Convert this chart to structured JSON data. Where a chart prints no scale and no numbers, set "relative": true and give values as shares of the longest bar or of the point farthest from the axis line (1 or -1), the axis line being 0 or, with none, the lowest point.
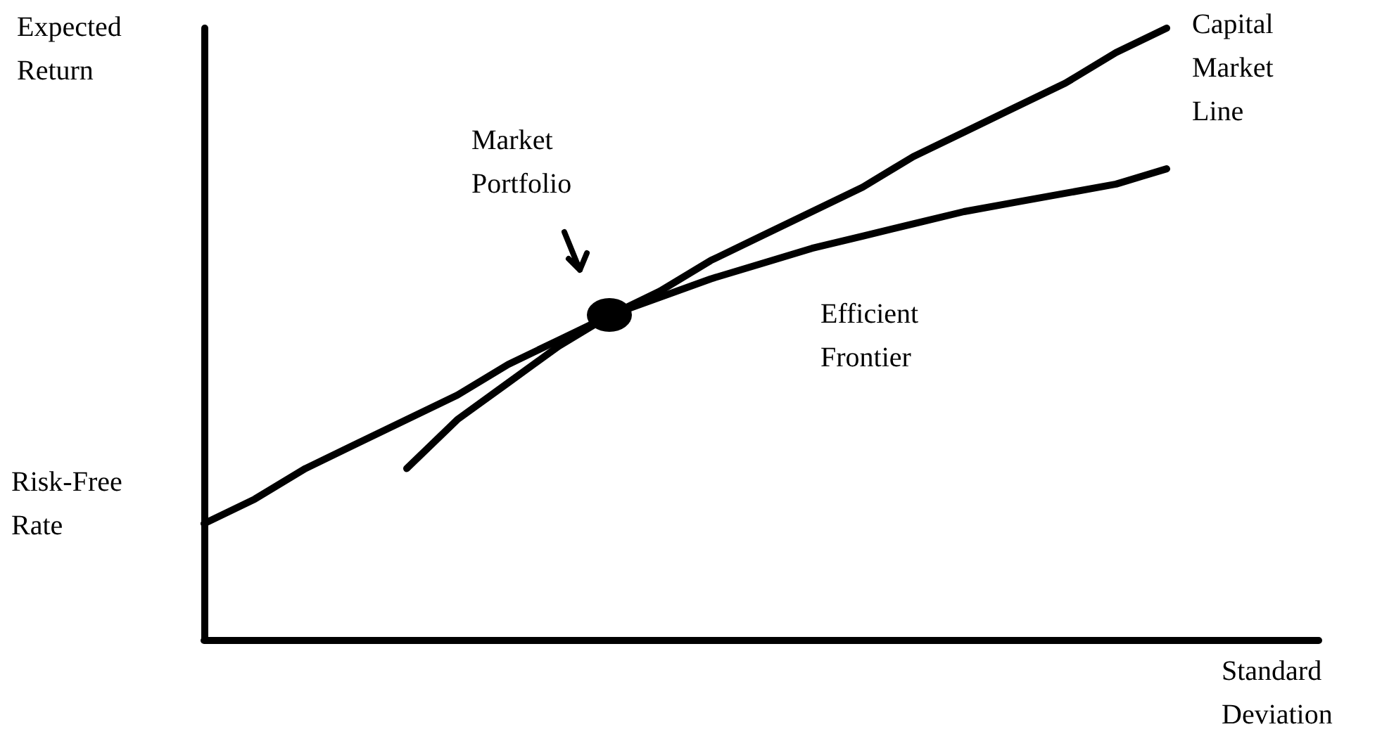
{
  "chart_data": {
    "type": "line",
    "relative": true,
    "xlabel": "Standard Deviation",
    "ylabel": "Expected Return",
    "categories": [
      null,
      null,
      null,
      null,
      null,
      null,
      null,
      null,
      null,
      null,
      null,
      null,
      null,
      null,
      null,
      null,
      null,
      null,
      null,
      null,
      null,
      null,
      null
    ],
    "series": [
      {
        "name": "Capital Market Line",
        "color": "#000000",
        "values": [
          0.19,
          0.23,
          0.28,
          0.32,
          0.36,
          0.4,
          0.45,
          0.49,
          0.53,
          0.57,
          0.62,
          0.66,
          0.7,
          0.74,
          0.79,
          0.83,
          0.87,
          0.91,
          0.96,
          1,
          null,
          null,
          null
        ]
      },
      {
        "name": "Efficient Frontier",
        "color": "#000000",
        "values": [
          null,
          null,
          null,
          null,
          0.28,
          0.36,
          0.42,
          0.48,
          0.53,
          0.56,
          0.59,
          0.615,
          0.64,
          0.66,
          0.68,
          0.7,
          0.715,
          0.73,
          0.745,
          0.77,
          null,
          null,
          null
        ]
      }
    ],
    "annotations": [
      "Market Portfolio",
      "Risk-Free Rate"
    ],
    "grid": false,
    "legend": false,
    "line_style": "solid"
  }
}
